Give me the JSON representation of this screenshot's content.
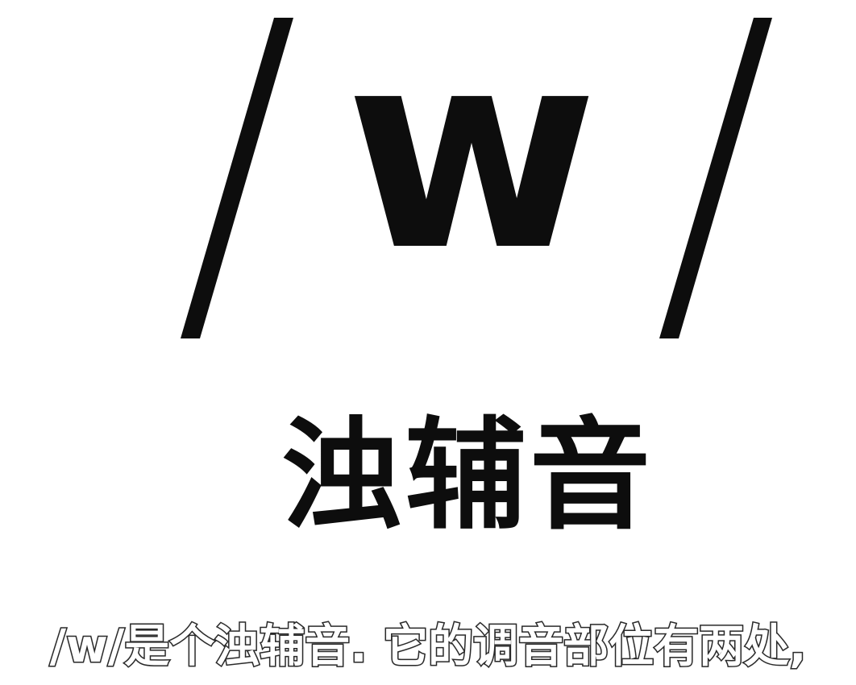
{
  "phoneme": {
    "letter": "w"
  },
  "category": {
    "label": "浊辅音"
  },
  "subtitle": {
    "text": "/w/是个浊辅音. 它的调音部位有两处,"
  },
  "colors": {
    "background": "#ffffff",
    "ink": "#0d0d0d",
    "subtitle_fill": "#ffffff",
    "subtitle_outline": "#2a2a2a"
  }
}
